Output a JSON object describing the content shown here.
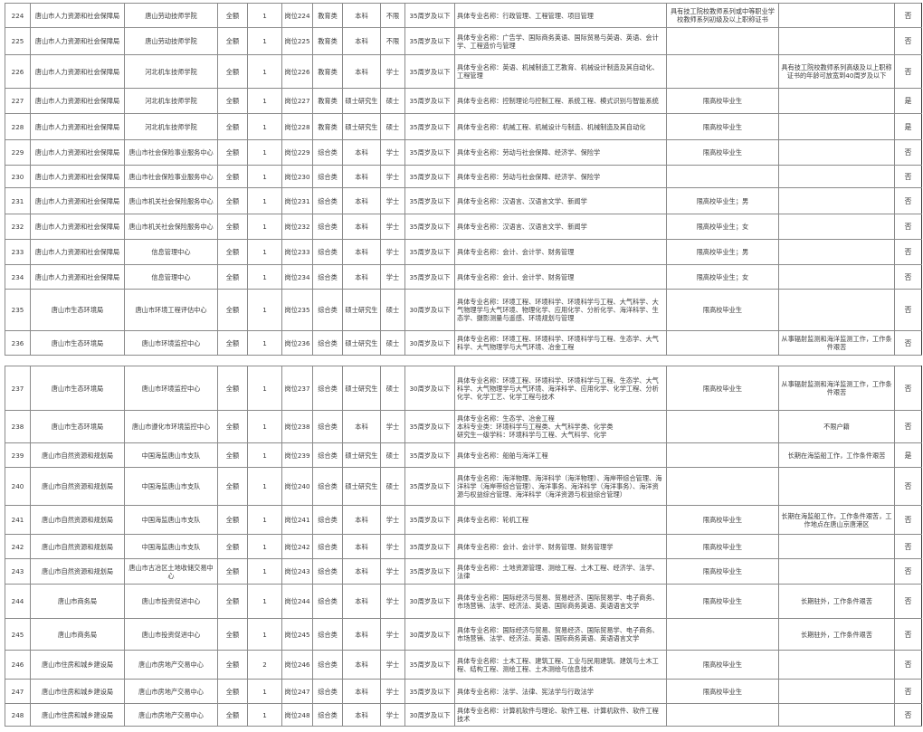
{
  "table_pages": [
    {
      "rows": [
        {
          "no": "224",
          "dept": "唐山市人力资源和社会保障局",
          "unit": "唐山劳动技师学院",
          "funding": "全额",
          "count": "1",
          "post": "岗位224",
          "category": "教育类",
          "education": "本科",
          "degree": "不限",
          "age": "35周岁及以下",
          "major": "具体专业名称：行政管理、工程管理、项目管理",
          "req": "具有技工院校教师系列或中等职业学校教师系列初级及以上职称证书",
          "note": "",
          "flag": "否"
        },
        {
          "no": "225",
          "dept": "唐山市人力资源和社会保障局",
          "unit": "唐山劳动技师学院",
          "funding": "全额",
          "count": "1",
          "post": "岗位225",
          "category": "教育类",
          "education": "本科",
          "degree": "不限",
          "age": "35周岁及以下",
          "major": "具体专业名称：广告学、国际商务英语、国际贸易与英语、英语、会计学、工程造价与管理",
          "req": "",
          "note": "",
          "flag": "否"
        },
        {
          "no": "226",
          "dept": "唐山市人力资源和社会保障局",
          "unit": "河北机车技师学院",
          "funding": "全额",
          "count": "1",
          "post": "岗位226",
          "category": "教育类",
          "education": "本科",
          "degree": "学士",
          "age": "35周岁及以下",
          "major": "具体专业名称：英语、机械制造工艺教育、机械设计制造及其自动化、工程管理",
          "req": "",
          "note": "具有技工院校教师系列高级及以上职称证书的年龄可放宽到40周岁及以下",
          "flag": "否"
        },
        {
          "no": "227",
          "dept": "唐山市人力资源和社会保障局",
          "unit": "河北机车技师学院",
          "funding": "全额",
          "count": "1",
          "post": "岗位227",
          "category": "教育类",
          "education": "硕士研究生",
          "degree": "硕士",
          "age": "35周岁及以下",
          "major": "具体专业名称：控制理论与控制工程、系统工程、模式识别与智能系统",
          "req": "限高校毕业生",
          "note": "",
          "flag": "是"
        },
        {
          "no": "228",
          "dept": "唐山市人力资源和社会保障局",
          "unit": "河北机车技师学院",
          "funding": "全额",
          "count": "1",
          "post": "岗位228",
          "category": "教育类",
          "education": "硕士研究生",
          "degree": "硕士",
          "age": "35周岁及以下",
          "major": "具体专业名称：机械工程、机械设计与制造、机械制造及其自动化",
          "req": "限高校毕业生",
          "note": "",
          "flag": "是"
        },
        {
          "no": "229",
          "dept": "唐山市人力资源和社会保障局",
          "unit": "唐山市社会保险事业服务中心",
          "funding": "全额",
          "count": "1",
          "post": "岗位229",
          "category": "综合类",
          "education": "本科",
          "degree": "学士",
          "age": "35周岁及以下",
          "major": "具体专业名称：劳动与社会保障、经济学、保险学",
          "req": "限高校毕业生",
          "note": "",
          "flag": "否"
        },
        {
          "no": "230",
          "dept": "唐山市人力资源和社会保障局",
          "unit": "唐山市社会保险事业服务中心",
          "funding": "全额",
          "count": "1",
          "post": "岗位230",
          "category": "综合类",
          "education": "本科",
          "degree": "学士",
          "age": "35周岁及以下",
          "major": "具体专业名称：劳动与社会保障、经济学、保险学",
          "req": "",
          "note": "",
          "flag": "否"
        },
        {
          "no": "231",
          "dept": "唐山市人力资源和社会保障局",
          "unit": "唐山市机关社会保险服务中心",
          "funding": "全额",
          "count": "1",
          "post": "岗位231",
          "category": "综合类",
          "education": "本科",
          "degree": "学士",
          "age": "35周岁及以下",
          "major": "具体专业名称：汉语言、汉语言文学、新闻学",
          "req": "限高校毕业生；男",
          "note": "",
          "flag": "否"
        },
        {
          "no": "232",
          "dept": "唐山市人力资源和社会保障局",
          "unit": "唐山市机关社会保险服务中心",
          "funding": "全额",
          "count": "1",
          "post": "岗位232",
          "category": "综合类",
          "education": "本科",
          "degree": "学士",
          "age": "35周岁及以下",
          "major": "具体专业名称：汉语言、汉语言文学、新闻学",
          "req": "限高校毕业生；女",
          "note": "",
          "flag": "否"
        },
        {
          "no": "233",
          "dept": "唐山市人力资源和社会保障局",
          "unit": "信息管理中心",
          "funding": "全额",
          "count": "1",
          "post": "岗位233",
          "category": "综合类",
          "education": "本科",
          "degree": "学士",
          "age": "35周岁及以下",
          "major": "具体专业名称：会计、会计学、财务管理",
          "req": "限高校毕业生；男",
          "note": "",
          "flag": "否"
        },
        {
          "no": "234",
          "dept": "唐山市人力资源和社会保障局",
          "unit": "信息管理中心",
          "funding": "全额",
          "count": "1",
          "post": "岗位234",
          "category": "综合类",
          "education": "本科",
          "degree": "学士",
          "age": "35周岁及以下",
          "major": "具体专业名称：会计、会计学、财务管理",
          "req": "限高校毕业生；女",
          "note": "",
          "flag": "否"
        },
        {
          "no": "235",
          "dept": "唐山市生态环境局",
          "unit": "唐山市环境工程评估中心",
          "funding": "全额",
          "count": "1",
          "post": "岗位235",
          "category": "综合类",
          "education": "硕士研究生",
          "degree": "硕士",
          "age": "30周岁及以下",
          "major": "具体专业名称：环境工程、环境科学、环境科学与工程、大气科学、大气物理学与大气环境、物理化学、应用化学、分析化学、海洋科学、生态学、摄影测量与遥感、环境规划与管理",
          "req": "限高校毕业生",
          "note": "",
          "flag": "否"
        },
        {
          "no": "236",
          "dept": "唐山市生态环境局",
          "unit": "唐山市环境监控中心",
          "funding": "全额",
          "count": "1",
          "post": "岗位236",
          "category": "综合类",
          "education": "硕士研究生",
          "degree": "硕士",
          "age": "30周岁及以下",
          "major": "具体专业名称：环境工程、环境科学、环境科学与工程、生态学、大气科学、大气物理学与大气环境、冶金工程",
          "req": "",
          "note": "从事辐射监测和海洋监测工作，工作条件艰苦",
          "flag": "否"
        }
      ]
    },
    {
      "rows": [
        {
          "no": "237",
          "dept": "唐山市生态环境局",
          "unit": "唐山市环境监控中心",
          "funding": "全额",
          "count": "1",
          "post": "岗位237",
          "category": "综合类",
          "education": "硕士研究生",
          "degree": "硕士",
          "age": "30周岁及以下",
          "major": "具体专业名称：环境工程、环境科学、环境科学与工程、生态学、大气科学、大气物理学与大气环境、海洋科学、应用化学、化学工程、分析化学、化学工艺、化学工程与技术",
          "req": "限高校毕业生",
          "note": "从事辐射监测和海洋监测工作，工作条件艰苦",
          "flag": "否"
        },
        {
          "no": "238",
          "dept": "唐山市生态环境局",
          "unit": "唐山市遵化市环境监控中心",
          "funding": "全额",
          "count": "1",
          "post": "岗位238",
          "category": "综合类",
          "education": "本科",
          "degree": "学士",
          "age": "35周岁及以下",
          "major": "具体专业名称：生态学、冶金工程\n本科专业类：环境科学与工程类、大气科学类、化学类\n研究生一级学科：环境科学与工程、大气科学、化学",
          "req": "",
          "note": "不限户籍",
          "flag": "否"
        },
        {
          "no": "239",
          "dept": "唐山市自然资源和规划局",
          "unit": "中国海监唐山市支队",
          "funding": "全额",
          "count": "1",
          "post": "岗位239",
          "category": "综合类",
          "education": "硕士研究生",
          "degree": "硕士",
          "age": "35周岁及以下",
          "major": "具体专业名称：船舶与海洋工程",
          "req": "",
          "note": "长期在海监船工作，工作条件艰苦",
          "flag": "是"
        },
        {
          "no": "240",
          "dept": "唐山市自然资源和规划局",
          "unit": "中国海监唐山市支队",
          "funding": "全额",
          "count": "1",
          "post": "岗位240",
          "category": "综合类",
          "education": "硕士研究生",
          "degree": "硕士",
          "age": "35周岁及以下",
          "major": "具体专业名称：海洋物理、海洋科学（海洋物理）、海岸带综合管理、海洋科学（海岸带综合管理）、海洋事务、海洋科学（海洋事务）、海洋资源与权益综合管理、海洋科学（海洋资源与权益综合管理）",
          "req": "",
          "note": "",
          "flag": "否"
        },
        {
          "no": "241",
          "dept": "唐山市自然资源和规划局",
          "unit": "中国海监唐山市支队",
          "funding": "全额",
          "count": "1",
          "post": "岗位241",
          "category": "综合类",
          "education": "本科",
          "degree": "学士",
          "age": "35周岁及以下",
          "major": "具体专业名称：轮机工程",
          "req": "限高校毕业生",
          "note": "长期在海监船工作，工作条件艰苦，工作地点在唐山京唐港区",
          "flag": "否"
        },
        {
          "no": "242",
          "dept": "唐山市自然资源和规划局",
          "unit": "中国海监唐山市支队",
          "funding": "全额",
          "count": "1",
          "post": "岗位242",
          "category": "综合类",
          "education": "本科",
          "degree": "学士",
          "age": "35周岁及以下",
          "major": "具体专业名称：会计、会计学、财务管理、财务管理学",
          "req": "限高校毕业生",
          "note": "",
          "flag": "否"
        },
        {
          "no": "243",
          "dept": "唐山市自然资源和规划局",
          "unit": "唐山市古冶区土地收储交易中心",
          "funding": "全额",
          "count": "1",
          "post": "岗位243",
          "category": "综合类",
          "education": "本科",
          "degree": "学士",
          "age": "35周岁及以下",
          "major": "具体专业名称：土地资源管理、测绘工程、土木工程、经济学、法学、法律",
          "req": "限高校毕业生",
          "note": "",
          "flag": "否"
        },
        {
          "no": "244",
          "dept": "唐山市商务局",
          "unit": "唐山市投资促进中心",
          "funding": "全额",
          "count": "1",
          "post": "岗位244",
          "category": "综合类",
          "education": "本科",
          "degree": "学士",
          "age": "30周岁及以下",
          "major": "具体专业名称：国际经济与贸易、贸易经济、国际贸易学、电子商务、市场营销、法学、经济法、英语、国际商务英语、英语语言文学",
          "req": "限高校毕业生",
          "note": "长期驻外，工作条件艰苦",
          "flag": "否"
        },
        {
          "no": "245",
          "dept": "唐山市商务局",
          "unit": "唐山市投资促进中心",
          "funding": "全额",
          "count": "1",
          "post": "岗位245",
          "category": "综合类",
          "education": "本科",
          "degree": "学士",
          "age": "30周岁及以下",
          "major": "具体专业名称：国际经济与贸易、贸易经济、国际贸易学、电子商务、市场营销、法学、经济法、英语、国际商务英语、英语语言文学",
          "req": "",
          "note": "长期驻外，工作条件艰苦",
          "flag": "否"
        },
        {
          "no": "246",
          "dept": "唐山市住房和城乡建设局",
          "unit": "唐山市房地产交易中心",
          "funding": "全额",
          "count": "2",
          "post": "岗位246",
          "category": "综合类",
          "education": "本科",
          "degree": "学士",
          "age": "35周岁及以下",
          "major": "具体专业名称：土木工程、建筑工程、工业与民用建筑、建筑与土木工程、结构工程、测绘工程、土木测绘与信息技术",
          "req": "限高校毕业生",
          "note": "",
          "flag": "否"
        },
        {
          "no": "247",
          "dept": "唐山市住房和城乡建设局",
          "unit": "唐山市房地产交易中心",
          "funding": "全额",
          "count": "1",
          "post": "岗位247",
          "category": "综合类",
          "education": "本科",
          "degree": "学士",
          "age": "35周岁及以下",
          "major": "具体专业名称：法学、法律、宪法学与行政法学",
          "req": "限高校毕业生",
          "note": "",
          "flag": "否"
        },
        {
          "no": "248",
          "dept": "唐山市住房和城乡建设局",
          "unit": "唐山市房地产交易中心",
          "funding": "全额",
          "count": "1",
          "post": "岗位248",
          "category": "综合类",
          "education": "本科",
          "degree": "学士",
          "age": "30周岁及以下",
          "major": "具体专业名称：计算机软件与理论、软件工程、计算机软件、软件工程技术",
          "req": "",
          "note": "",
          "flag": "否"
        }
      ]
    }
  ]
}
